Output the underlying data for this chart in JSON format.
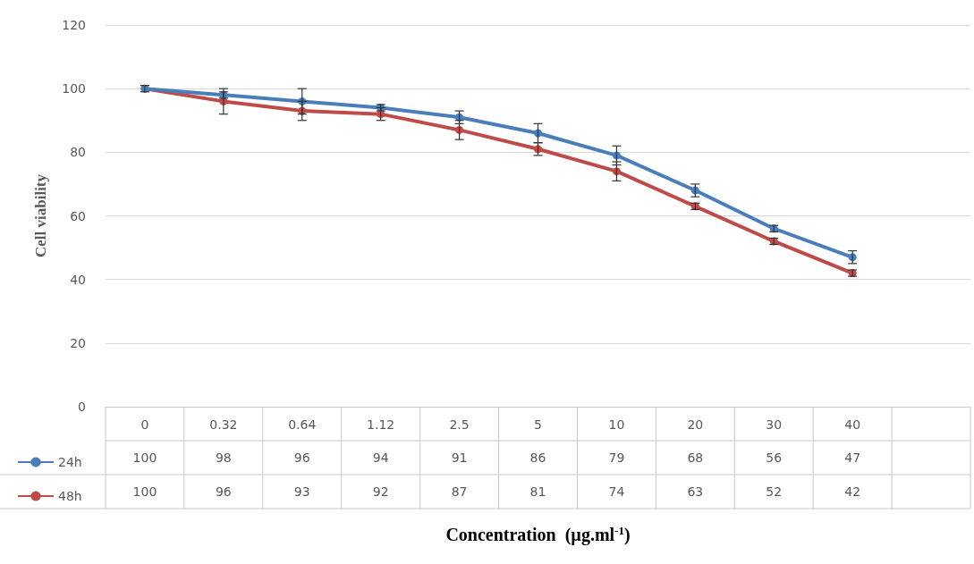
{
  "chart_data": {
    "type": "line",
    "annotations": [
      "Concentration  (µg.ml$^{-1}$)"
    ],
    "ylabel": "Cell viability",
    "categories": [
      "0",
      "0.32",
      "0.64",
      "1.12",
      "2.5",
      "5",
      "10",
      "20",
      "30",
      "40",
      null
    ],
    "series": [
      {
        "name": "24h",
        "color": "#4a7ebb",
        "values": [
          100,
          98,
          96,
          94,
          91,
          86,
          79,
          68,
          56,
          47,
          null
        ],
        "errors": [
          0,
          1,
          4,
          1,
          2,
          3,
          3,
          2,
          1,
          2,
          null
        ]
      },
      {
        "name": "48h",
        "color": "#be4b48",
        "values": [
          100,
          96,
          93,
          92,
          87,
          81,
          74,
          63,
          52,
          42,
          null
        ],
        "errors": [
          1,
          4,
          3,
          2,
          3,
          2,
          3,
          1,
          1,
          1,
          null
        ]
      }
    ],
    "ylim": [
      0,
      120
    ],
    "yticks": [
      0,
      20,
      40,
      60,
      80,
      100,
      120
    ],
    "grid": "y",
    "legend": "bottom left",
    "marker": "circle",
    "data_labels": true
  }
}
